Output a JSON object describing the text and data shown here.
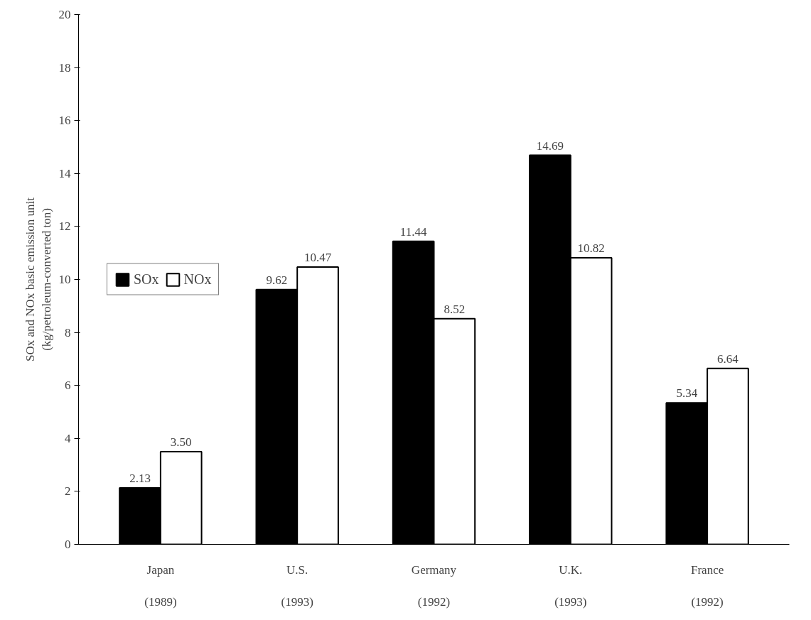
{
  "chart_data": {
    "type": "bar",
    "ylabel": "SOx and NOx basic emission unit\n(kg/petroleum-converted ton)",
    "categories": [
      "Japan\n\n(1989)",
      "U.S.\n\n(1993)",
      "Germany\n\n(1992)",
      "U.K.\n\n(1993)",
      "France\n\n(1992)"
    ],
    "series": [
      {
        "name": "SOx",
        "color": "#000000",
        "values": [
          2.13,
          9.62,
          11.44,
          14.69,
          5.34
        ]
      },
      {
        "name": "NOx",
        "color": "#ffffff",
        "values": [
          3.5,
          10.47,
          8.52,
          10.82,
          6.64
        ]
      }
    ],
    "value_labels": [
      [
        "2.13",
        "9.62",
        "11.44",
        "14.69",
        "5.34"
      ],
      [
        "3.50",
        "10.47",
        "8.52",
        "10.82",
        "6.64"
      ]
    ],
    "ylim": [
      0,
      20
    ],
    "yticks": [
      0,
      2,
      4,
      6,
      8,
      10,
      12,
      14,
      16,
      18,
      20
    ],
    "legend": "left",
    "grid": false
  }
}
